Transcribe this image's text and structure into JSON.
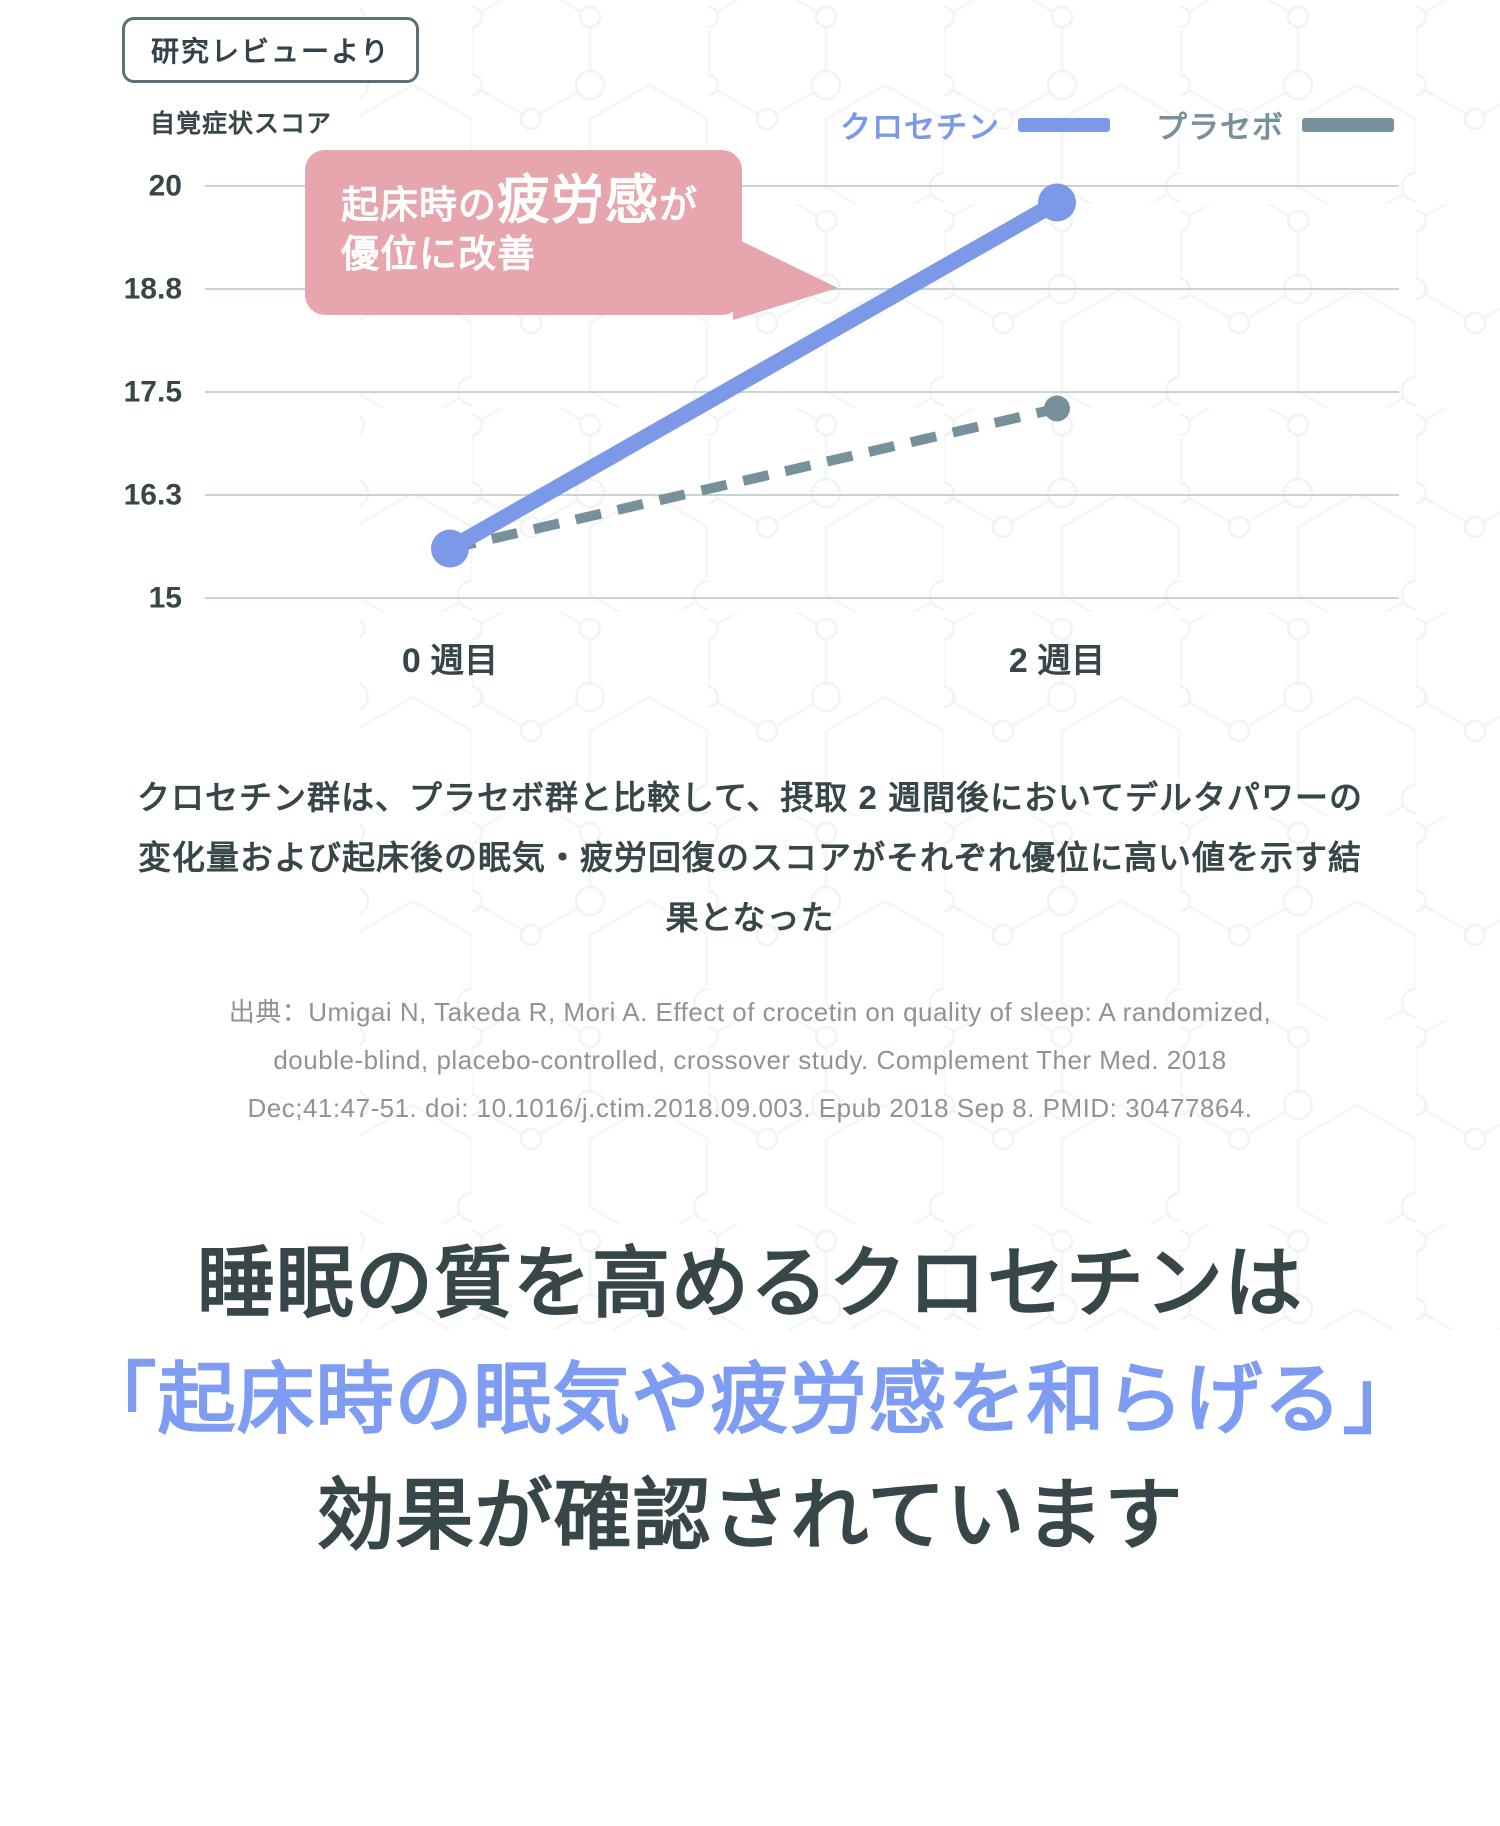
{
  "badge": {
    "label": "研究レビューより"
  },
  "chart": {
    "axis_title": "自覚症状スコア",
    "legend": [
      {
        "label": "クロセチン",
        "color": "#7c98e8"
      },
      {
        "label": "プラセボ",
        "color": "#77919c"
      }
    ],
    "annotation": {
      "part1": "起床時の",
      "part2": "疲労感",
      "part3": "が",
      "line2": "優位に改善"
    }
  },
  "chart_data": {
    "type": "line",
    "categories": [
      "0 週目",
      "2 週目"
    ],
    "series": [
      {
        "name": "クロセチン",
        "values": [
          15.6,
          19.8
        ],
        "color": "#7c98e8",
        "style": "solid"
      },
      {
        "name": "プラセボ",
        "values": [
          15.6,
          17.3
        ],
        "color": "#77919c",
        "style": "dashed"
      }
    ],
    "title": "",
    "xlabel": "",
    "ylabel": "自覚症状スコア",
    "ylim": [
      15,
      20
    ],
    "yticks": {
      "values": [
        15,
        16.25,
        17.5,
        18.75,
        20
      ],
      "labels": [
        "15",
        "16.3",
        "17.5",
        "18.8",
        "20"
      ]
    },
    "grid": true,
    "legend_position": "top-right",
    "annotation": "起床時の疲労感が優位に改善"
  },
  "description": {
    "line1": "クロセチン群は、プラセボ群と比較して、摂取 2 週間後においてデルタパワーの",
    "line2": "変化量および起床後の眠気・疲労回復のスコアがそれぞれ優位に高い値を示す結",
    "line3": "果となった"
  },
  "citation": {
    "line1": "出典：Umigai N, Takeda R, Mori A. Effect of crocetin on quality of sleep: A randomized,",
    "line2": "double-blind, placebo-controlled, crossover study. Complement Ther Med. 2018",
    "line3": "Dec;41:47-51. doi: 10.1016/j.ctim.2018.09.003. Epub 2018 Sep 8. PMID: 30477864."
  },
  "heading": {
    "line1": "睡眠の質を高めるクロセチンは",
    "line2": "「起床時の眠気や疲労感を和らげる」",
    "line3": "効果が確認されています"
  },
  "colors": {
    "accent_blue": "#7c98e8",
    "heading_blue": "#7e9df2",
    "placebo_gray": "#77919c",
    "dark_text": "#374649",
    "citation_gray": "#8d9499",
    "bubble_pink": "#e7a6ae",
    "gridline": "#c6d4d3",
    "badge_border": "#5d7078"
  }
}
